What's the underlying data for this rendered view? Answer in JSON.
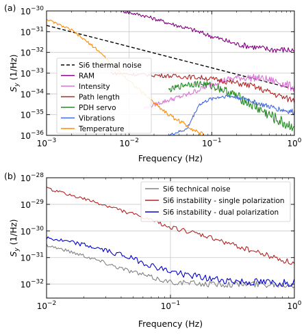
{
  "chart_data": [
    {
      "type": "line",
      "panel_label": "(a)",
      "xlabel": "Frequency (Hz)",
      "ylabel_main": "S",
      "ylabel_sub": "y",
      "ylabel_unit": " (1/Hz)",
      "xscale": "log",
      "yscale": "log",
      "xlim": [
        0.001,
        1
      ],
      "ylim": [
        1e-36,
        1e-30
      ],
      "xticks": [
        {
          "value": 0.001,
          "base": "10",
          "exp": "−3"
        },
        {
          "value": 0.01,
          "base": "10",
          "exp": "−2"
        },
        {
          "value": 0.1,
          "base": "10",
          "exp": "−1"
        },
        {
          "value": 1,
          "base": "10",
          "exp": "0"
        }
      ],
      "yticks": [
        {
          "value": 1e-36,
          "base": "10",
          "exp": "−36"
        },
        {
          "value": 1e-35,
          "base": "10",
          "exp": "−35"
        },
        {
          "value": 1e-34,
          "base": "10",
          "exp": "−34"
        },
        {
          "value": 1e-33,
          "base": "10",
          "exp": "−33"
        },
        {
          "value": 1e-32,
          "base": "10",
          "exp": "−32"
        },
        {
          "value": 1e-31,
          "base": "10",
          "exp": "−31"
        },
        {
          "value": 1e-30,
          "base": "10",
          "exp": "−30"
        }
      ],
      "grid": true,
      "legend_position": "center-left",
      "series": [
        {
          "name": "Si6 thermal noise",
          "color": "#000000",
          "dashed": true,
          "noise": 0,
          "x": [
            0.001,
            1
          ],
          "y": [
            2e-31,
            1.7e-34
          ]
        },
        {
          "name": "RAM",
          "color": "#800080",
          "dashed": false,
          "noise": 0.12,
          "x": [
            0.008,
            0.015,
            0.03,
            0.06,
            0.1,
            0.2,
            0.5,
            1
          ],
          "y": [
            1e-30,
            6e-31,
            2.6e-31,
            1.2e-31,
            6e-32,
            2.5e-32,
            1.4e-32,
            1.3e-32
          ]
        },
        {
          "name": "Intensity",
          "color": "#da70d6",
          "dashed": false,
          "noise": 0.15,
          "x": [
            0.015,
            0.02,
            0.03,
            0.05,
            0.08,
            0.12,
            0.2,
            0.35,
            0.6,
            1
          ],
          "y": [
            2e-35,
            3e-35,
            5e-35,
            9e-35,
            2e-34,
            4e-34,
            6e-34,
            6e-34,
            4e-34,
            2e-34
          ]
        },
        {
          "name": "Path length",
          "color": "#b22222",
          "dashed": false,
          "noise": 0.12,
          "x": [
            0.006,
            0.01,
            0.02,
            0.04,
            0.08,
            0.15,
            0.3,
            0.5,
            0.8,
            1
          ],
          "y": [
            1e-33,
            9e-34,
            8e-34,
            7e-34,
            6e-34,
            4e-34,
            2.5e-34,
            1.2e-34,
            6e-35,
            5e-35
          ]
        },
        {
          "name": "PDH servo",
          "color": "#228b22",
          "dashed": false,
          "noise": 0.22,
          "x": [
            0.03,
            0.05,
            0.08,
            0.12,
            0.2,
            0.3,
            0.45,
            0.65,
            0.85,
            1
          ],
          "y": [
            1.5e-34,
            3e-34,
            3e-34,
            2e-34,
            8e-35,
            3e-35,
            1.2e-35,
            5e-36,
            3e-36,
            3e-36
          ]
        },
        {
          "name": "Vibrations",
          "color": "#4169e1",
          "dashed": false,
          "noise": 0.1,
          "x": [
            0.03,
            0.05,
            0.07,
            0.1,
            0.15,
            0.25,
            0.4,
            0.6,
            0.8,
            1
          ],
          "y": [
            1e-36,
            2e-36,
            3e-35,
            6e-35,
            8e-35,
            6e-35,
            3e-35,
            2e-35,
            1.5e-35,
            1.3e-35
          ]
        },
        {
          "name": "Temperature",
          "color": "#ff8c00",
          "dashed": false,
          "noise": 0.08,
          "x": [
            0.001,
            0.002,
            0.004,
            0.008,
            0.015,
            0.03,
            0.05,
            0.08
          ],
          "y": [
            4e-31,
            1.2e-31,
            1.5e-32,
            1e-33,
            1e-34,
            1e-35,
            3e-36,
            1e-36
          ]
        }
      ]
    },
    {
      "type": "line",
      "panel_label": "(b)",
      "xlabel": "Frequency (Hz)",
      "ylabel_main": "S",
      "ylabel_sub": "y",
      "ylabel_unit": " (1/Hz)",
      "xscale": "log",
      "yscale": "log",
      "xlim": [
        0.01,
        1
      ],
      "ylim": [
        3e-33,
        1e-28
      ],
      "xticks": [
        {
          "value": 0.01,
          "base": "10",
          "exp": "−2"
        },
        {
          "value": 0.1,
          "base": "10",
          "exp": "−1"
        },
        {
          "value": 1,
          "base": "10",
          "exp": "0"
        }
      ],
      "yticks": [
        {
          "value": 1e-32,
          "base": "10",
          "exp": "−32"
        },
        {
          "value": 1e-31,
          "base": "10",
          "exp": "−31"
        },
        {
          "value": 1e-30,
          "base": "10",
          "exp": "−30"
        },
        {
          "value": 1e-29,
          "base": "10",
          "exp": "−29"
        },
        {
          "value": 1e-28,
          "base": "10",
          "exp": "−28"
        }
      ],
      "grid": true,
      "legend_position": "top-right",
      "series": [
        {
          "name": "Si6 technical noise",
          "color": "#808080",
          "dashed": false,
          "noise": 0.1,
          "x": [
            0.01,
            0.02,
            0.04,
            0.07,
            0.1,
            0.2,
            0.4,
            0.7,
            1
          ],
          "y": [
            3e-31,
            1.2e-31,
            4e-32,
            1.8e-32,
            1.2e-32,
            1e-32,
            1e-32,
            1e-32,
            1e-32
          ]
        },
        {
          "name": "Si6 instability - single polarization",
          "color": "#b22222",
          "dashed": false,
          "noise": 0.08,
          "x": [
            0.01,
            0.02,
            0.04,
            0.07,
            0.1,
            0.2,
            0.4,
            0.7,
            1
          ],
          "y": [
            4e-29,
            1.6e-29,
            6e-30,
            2.5e-30,
            1.4e-30,
            6e-31,
            2.2e-31,
            1e-31,
            6e-32
          ]
        },
        {
          "name": "Si6 instability - dual polarization",
          "color": "#0000cd",
          "dashed": false,
          "noise": 0.12,
          "x": [
            0.01,
            0.02,
            0.04,
            0.07,
            0.1,
            0.2,
            0.4,
            0.7,
            1
          ],
          "y": [
            5.5e-31,
            3e-31,
            1.3e-31,
            5e-32,
            3e-32,
            1.6e-32,
            1.2e-32,
            1.1e-32,
            1.2e-32
          ]
        }
      ]
    }
  ]
}
